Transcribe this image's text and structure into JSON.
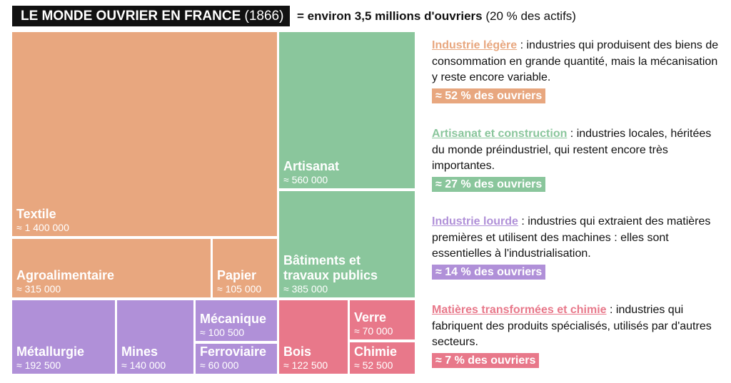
{
  "header": {
    "title_main": "LE MONDE OUVRIER EN FRANCE",
    "title_year": "(1866)",
    "subtitle_main": "= environ 3,5 millions d'ouvriers",
    "subtitle_extra": "(20 % des actifs)"
  },
  "colors": {
    "legere": "#e8a77f",
    "artisanat": "#8ac69c",
    "lourde": "#b090d8",
    "chimie": "#e8788a"
  },
  "chart_data": {
    "type": "treemap",
    "title": "LE MONDE OUVRIER EN FRANCE (1866)",
    "unit": "ouvriers",
    "tiles": [
      {
        "name": "Textile",
        "label": "Textile",
        "value": 1400000,
        "value_label": "≈ 1 400 000",
        "group": "legere"
      },
      {
        "name": "Agroalimentaire",
        "label": "Agroalimentaire",
        "value": 315000,
        "value_label": "≈ 315 000",
        "group": "legere"
      },
      {
        "name": "Papier",
        "label": "Papier",
        "value": 105000,
        "value_label": "≈ 105 000",
        "group": "legere"
      },
      {
        "name": "Artisanat",
        "label": "Artisanat",
        "value": 560000,
        "value_label": "≈ 560 000",
        "group": "artisanat"
      },
      {
        "name": "Batiments",
        "label": "Bâtiments et travaux publics",
        "value": 385000,
        "value_label": "≈ 385 000",
        "group": "artisanat"
      },
      {
        "name": "Metallurgie",
        "label": "Métallurgie",
        "value": 192500,
        "value_label": "≈ 192 500",
        "group": "lourde"
      },
      {
        "name": "Mines",
        "label": "Mines",
        "value": 140000,
        "value_label": "≈ 140 000",
        "group": "lourde"
      },
      {
        "name": "Mecanique",
        "label": "Mécanique",
        "value": 100500,
        "value_label": "≈ 100 500",
        "group": "lourde"
      },
      {
        "name": "Ferroviaire",
        "label": "Ferroviaire",
        "value": 60000,
        "value_label": "≈ 60 000",
        "group": "lourde"
      },
      {
        "name": "Bois",
        "label": "Bois",
        "value": 122500,
        "value_label": "≈ 122 500",
        "group": "chimie"
      },
      {
        "name": "Verre",
        "label": "Verre",
        "value": 70000,
        "value_label": "≈ 70 000",
        "group": "chimie"
      },
      {
        "name": "Chimie",
        "label": "Chimie",
        "value": 52500,
        "value_label": "≈ 52 500",
        "group": "chimie"
      }
    ]
  },
  "legend": [
    {
      "title": "Industrie légère",
      "text": " : industries qui produisent des biens de consommation en grande quantité, mais la mécanisation y reste encore variable.",
      "pct": "≈ 52 % des ouvriers",
      "group": "legere"
    },
    {
      "title": "Artisanat et construction",
      "text": " : industries locales, héritées du monde préindustriel, qui restent encore très importantes.",
      "pct": "≈ 27 % des ouvriers",
      "group": "artisanat"
    },
    {
      "title": "Industrie lourde",
      "text": " : industries qui extraient des matières premières et utilisent des machines : elles sont essentielles à l'industrialisation.",
      "pct": "≈ 14 % des ouvriers",
      "group": "lourde"
    },
    {
      "title": "Matières transformées et chimie",
      "text": " : industries qui fabriquent des produits spécialisés, utilisés par d'autres secteurs.",
      "pct": "≈ 7 % des ouvriers",
      "group": "chimie"
    }
  ]
}
